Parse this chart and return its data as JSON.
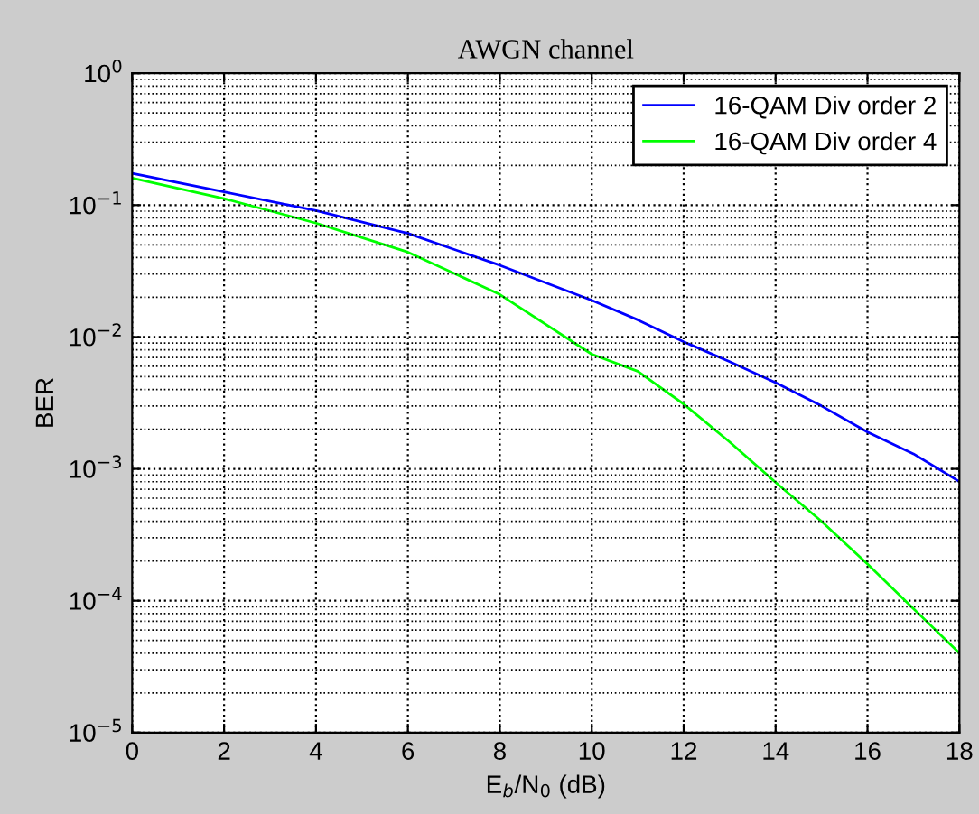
{
  "chart_data": {
    "type": "line",
    "title": "AWGN channel",
    "xlabel": "E$_{b}$/N$_{0}$ (dB)",
    "ylabel": "BER",
    "x": [
      0,
      2,
      4,
      6,
      8,
      10,
      11,
      12,
      13,
      14,
      15,
      16,
      17,
      18
    ],
    "series": [
      {
        "name": "16-QAM Div order 2",
        "color": "#0000ff",
        "values": [
          0.174,
          0.126,
          0.091,
          0.061,
          0.035,
          0.019,
          0.0135,
          0.0092,
          0.0065,
          0.0045,
          0.003,
          0.0019,
          0.0013,
          0.0008
        ]
      },
      {
        "name": "16-QAM Div order 4",
        "color": "#00ff00",
        "values": [
          0.16,
          0.112,
          0.073,
          0.044,
          0.021,
          0.0074,
          0.0055,
          0.0031,
          0.0016,
          0.00079,
          0.0004,
          0.00019,
          8.7e-05,
          4e-05
        ]
      }
    ],
    "log": "y",
    "xlim": [
      0,
      18
    ],
    "xticks": [
      0,
      2,
      4,
      6,
      8,
      10,
      12,
      14,
      16,
      18
    ],
    "ylim": [
      1e-05,
      1
    ],
    "yticks": [
      {
        "value": 1e-05,
        "label": "10$^{−5}$"
      },
      {
        "value": 0.0001,
        "label": "10$^{−4}$"
      },
      {
        "value": 0.001,
        "label": "10$^{−3}$"
      },
      {
        "value": 0.01,
        "label": "10$^{−2}$"
      },
      {
        "value": 0.1,
        "label": "10$^{−1}$"
      },
      {
        "value": 1,
        "label": "10$^{0}$"
      }
    ],
    "grid": true,
    "legend": "top right",
    "line_style": "solid",
    "marker": "none"
  }
}
